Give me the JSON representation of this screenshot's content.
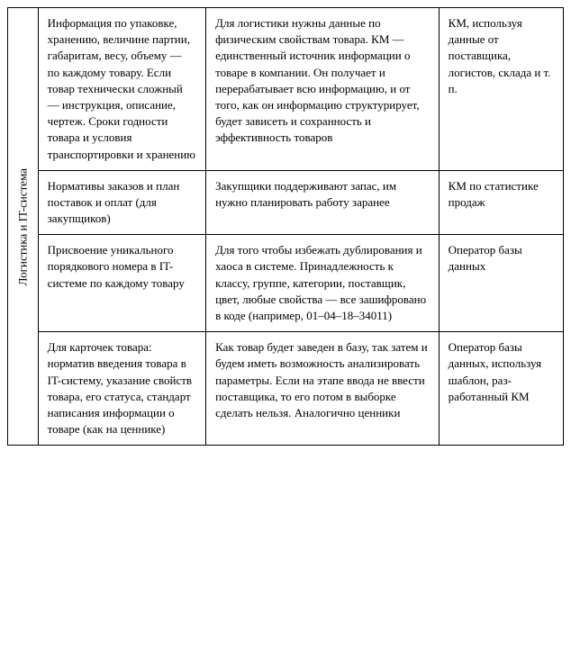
{
  "table": {
    "category_header": "Логистика и IT-система",
    "rows": [
      {
        "c1": "Информация по упаковке, хранению, величине партии, габаритам, весу, объ­ему — по каждому товару. Если товар технически слож­ный — инструкция, описание, чертеж. Сроки годности товара и условия транспортировки и хранению",
        "c2": "Для логистики нужны данные по физическим свойствам товара. КМ — единственный источник информации о товаре в компании. Он получает и перерабатывает всю ин­формацию, и от того, как он информацию структурирует, будет зависеть и сохран­ность и эффективность то­варов",
        "c3": "КМ, исполь­зуя данные от поставщи­ка, логистов, склада и т. п."
      },
      {
        "c1": "Нормативы заказов и план поставок и оплат (для закупщи­ков)",
        "c2": "Закупщики поддерживают запас, им нужно планиро­вать работу заранее",
        "c3": "КМ по стати­стике продаж"
      },
      {
        "c1": "Присвоение уни­кального порядко­вого номера в IT-системе по каждому товару",
        "c2": "Для того чтобы избежать дублирования и хаоса в си­стеме. Принадлежность к классу, группе, категории, поставщик, цвет, любые свойства — все зашифровано в коде (например, 01–04–18–34011)",
        "c3": "Оператор базы данных"
      },
      {
        "c1": "Для карточек товара: норматив введения товара в IT-систему, указание свойств товара, его статуса, стандарт написания информации о това­ре (как на ценнике)",
        "c2": "Как товар будет заведен в базу, так затем и будем иметь возможность анали­зировать параметры. Если на этапе ввода не ввести поставщика, то его потом в выборке сделать нельзя. Аналогично ценники",
        "c3": "Оператор базы данных, используя шаблон, раз­работанный КМ"
      }
    ]
  }
}
